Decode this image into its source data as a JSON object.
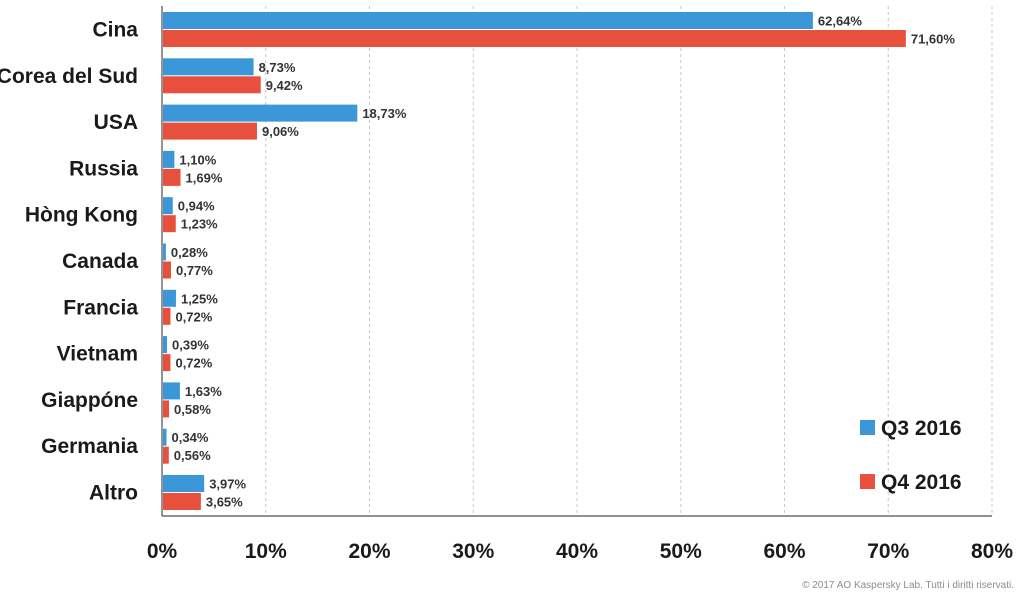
{
  "chart_data": {
    "type": "bar",
    "orientation": "horizontal",
    "categories": [
      "Cina",
      "Corea del Sud",
      "USA",
      "Russia",
      "Hòng Kong",
      "Canada",
      "Francia",
      "Vietnam",
      "Giappóne",
      "Germania",
      "Altro"
    ],
    "series": [
      {
        "name": "Q3 2016",
        "color": "#3b97d8",
        "values": [
          62.64,
          8.73,
          18.73,
          1.1,
          0.94,
          0.28,
          1.25,
          0.39,
          1.63,
          0.34,
          3.97
        ],
        "labels": [
          "62,64%",
          "8,73%",
          "18,73%",
          "1,10%",
          "0,94%",
          "0,28%",
          "1,25%",
          "0,39%",
          "1,63%",
          "0,34%",
          "3,97%"
        ]
      },
      {
        "name": "Q4 2016",
        "color": "#e8503e",
        "values": [
          71.6,
          9.42,
          9.06,
          1.69,
          1.23,
          0.77,
          0.72,
          0.72,
          0.58,
          0.56,
          3.65
        ],
        "labels": [
          "71,60%",
          "9,42%",
          "9,06%",
          "1,69%",
          "1,23%",
          "0,77%",
          "0,72%",
          "0,72%",
          "0,58%",
          "0,56%",
          "3,65%"
        ]
      }
    ],
    "xlim": [
      0,
      80
    ],
    "xticks": [
      0,
      10,
      20,
      30,
      40,
      50,
      60,
      70,
      80
    ],
    "xtick_labels": [
      "0%",
      "10%",
      "20%",
      "30%",
      "40%",
      "50%",
      "60%",
      "70%",
      "80%"
    ],
    "grid": "vertical dashed",
    "legend_position": "bottom-right"
  },
  "copyright": "© 2017 AO Kaspersky Lab. Tutti i diritti riservati."
}
